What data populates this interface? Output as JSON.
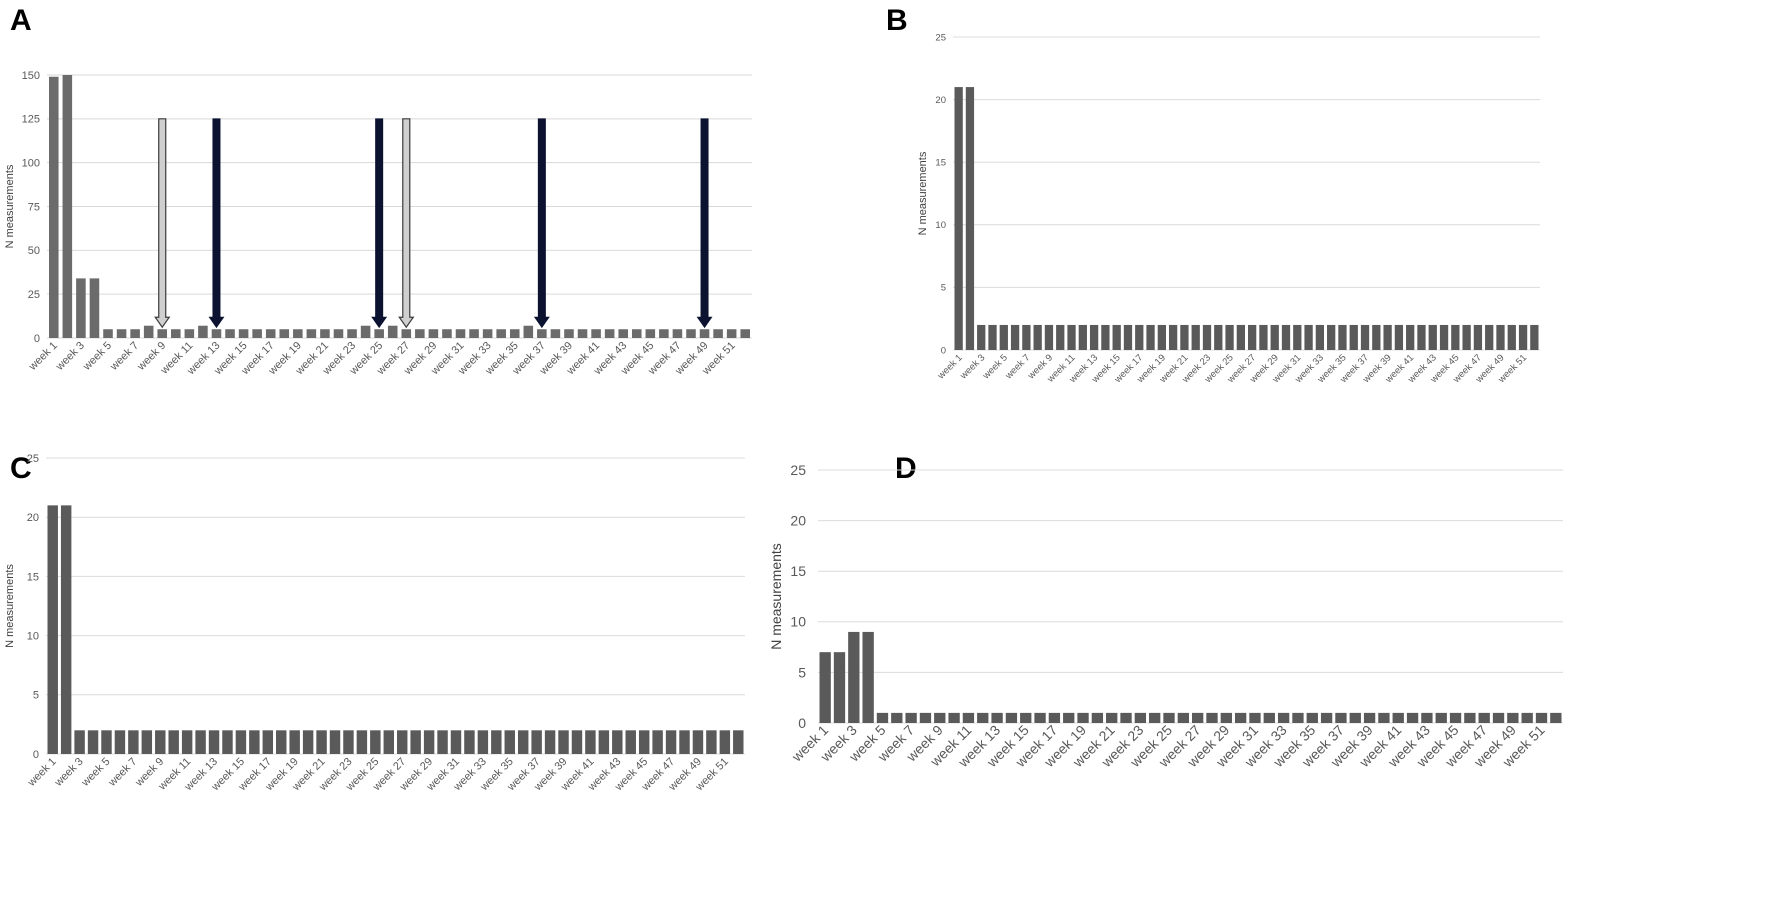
{
  "chart_data": [
    {
      "panel": "A",
      "type": "bar",
      "ylabel": "N measurements",
      "ylim": [
        0,
        150
      ],
      "yticks": [
        0,
        25,
        50,
        75,
        100,
        125,
        150
      ],
      "grid": true,
      "bar_color": "#6b6b6b",
      "categories": [
        "week 1",
        "week 2",
        "week 3",
        "week 4",
        "week 5",
        "week 6",
        "week 7",
        "week 8",
        "week 9",
        "week 10",
        "week 11",
        "week 12",
        "week 13",
        "week 14",
        "week 15",
        "week 16",
        "week 17",
        "week 18",
        "week 19",
        "week 20",
        "week 21",
        "week 22",
        "week 23",
        "week 24",
        "week 25",
        "week 26",
        "week 27",
        "week 28",
        "week 29",
        "week 30",
        "week 31",
        "week 32",
        "week 33",
        "week 34",
        "week 35",
        "week 36",
        "week 37",
        "week 38",
        "week 39",
        "week 40",
        "week 41",
        "week 42",
        "week 43",
        "week 44",
        "week 45",
        "week 46",
        "week 47",
        "week 48",
        "week 49",
        "week 50",
        "week 51",
        "week 52"
      ],
      "tick_labels": [
        "week 1",
        "week 3",
        "week 5",
        "week 7",
        "week 9",
        "week 11",
        "week 13",
        "week 15",
        "week 17",
        "week 19",
        "week 21",
        "week 23",
        "week 25",
        "week 27",
        "week 29",
        "week 31",
        "week 33",
        "week 35",
        "week 37",
        "week 39",
        "week 41",
        "week 43",
        "week 45",
        "week 47",
        "week 49",
        "week 51"
      ],
      "values": [
        149,
        150,
        34,
        34,
        5,
        5,
        5,
        7,
        5,
        5,
        5,
        7,
        5,
        5,
        5,
        5,
        5,
        5,
        5,
        5,
        5,
        5,
        5,
        7,
        5,
        7,
        5,
        5,
        5,
        5,
        5,
        5,
        5,
        5,
        5,
        7,
        5,
        5,
        5,
        5,
        5,
        5,
        5,
        5,
        5,
        5,
        5,
        5,
        5,
        5,
        5,
        5
      ],
      "arrows": [
        {
          "week_index": 8,
          "style": "open",
          "color": "#cfcfcf"
        },
        {
          "week_index": 12,
          "style": "solid",
          "color": "#0b1330"
        },
        {
          "week_index": 24,
          "style": "solid",
          "color": "#0b1330"
        },
        {
          "week_index": 26,
          "style": "open",
          "color": "#cfcfcf"
        },
        {
          "week_index": 36,
          "style": "solid",
          "color": "#0b1330"
        },
        {
          "week_index": 48,
          "style": "solid",
          "color": "#0b1330"
        }
      ]
    },
    {
      "panel": "B",
      "type": "bar",
      "ylabel": "N measurements",
      "ylim": [
        0,
        25
      ],
      "yticks": [
        0,
        5,
        10,
        15,
        20,
        25
      ],
      "grid": true,
      "bar_color": "#5a5a5a",
      "categories": [
        "week 1",
        "week 2",
        "week 3",
        "week 4",
        "week 5",
        "week 6",
        "week 7",
        "week 8",
        "week 9",
        "week 10",
        "week 11",
        "week 12",
        "week 13",
        "week 14",
        "week 15",
        "week 16",
        "week 17",
        "week 18",
        "week 19",
        "week 20",
        "week 21",
        "week 22",
        "week 23",
        "week 24",
        "week 25",
        "week 26",
        "week 27",
        "week 28",
        "week 29",
        "week 30",
        "week 31",
        "week 32",
        "week 33",
        "week 34",
        "week 35",
        "week 36",
        "week 37",
        "week 38",
        "week 39",
        "week 40",
        "week 41",
        "week 42",
        "week 43",
        "week 44",
        "week 45",
        "week 46",
        "week 47",
        "week 48",
        "week 49",
        "week 50",
        "week 51",
        "week 52"
      ],
      "tick_labels": [
        "week 1",
        "week 3",
        "week 5",
        "week 7",
        "week 9",
        "week 11",
        "week 13",
        "week 15",
        "week 17",
        "week 19",
        "week 21",
        "week 23",
        "week 25",
        "week 27",
        "week 29",
        "week 31",
        "week 33",
        "week 35",
        "week 37",
        "week 39",
        "week 41",
        "week 43",
        "week 45",
        "week 47",
        "week 49",
        "week 51"
      ],
      "values": [
        21,
        21,
        2,
        2,
        2,
        2,
        2,
        2,
        2,
        2,
        2,
        2,
        2,
        2,
        2,
        2,
        2,
        2,
        2,
        2,
        2,
        2,
        2,
        2,
        2,
        2,
        2,
        2,
        2,
        2,
        2,
        2,
        2,
        2,
        2,
        2,
        2,
        2,
        2,
        2,
        2,
        2,
        2,
        2,
        2,
        2,
        2,
        2,
        2,
        2,
        2,
        2
      ]
    },
    {
      "panel": "C",
      "type": "bar",
      "ylabel": "N measurements",
      "ylim": [
        0,
        25
      ],
      "yticks": [
        0,
        5,
        10,
        15,
        20,
        25
      ],
      "grid": true,
      "bar_color": "#5a5a5a",
      "categories": [
        "week 1",
        "week 2",
        "week 3",
        "week 4",
        "week 5",
        "week 6",
        "week 7",
        "week 8",
        "week 9",
        "week 10",
        "week 11",
        "week 12",
        "week 13",
        "week 14",
        "week 15",
        "week 16",
        "week 17",
        "week 18",
        "week 19",
        "week 20",
        "week 21",
        "week 22",
        "week 23",
        "week 24",
        "week 25",
        "week 26",
        "week 27",
        "week 28",
        "week 29",
        "week 30",
        "week 31",
        "week 32",
        "week 33",
        "week 34",
        "week 35",
        "week 36",
        "week 37",
        "week 38",
        "week 39",
        "week 40",
        "week 41",
        "week 42",
        "week 43",
        "week 44",
        "week 45",
        "week 46",
        "week 47",
        "week 48",
        "week 49",
        "week 50",
        "week 51",
        "week 52"
      ],
      "tick_labels": [
        "week 1",
        "week 3",
        "week 5",
        "week 7",
        "week 9",
        "week 11",
        "week 13",
        "week 15",
        "week 17",
        "week 19",
        "week 21",
        "week 23",
        "week 25",
        "week 27",
        "week 29",
        "week 31",
        "week 33",
        "week 35",
        "week 37",
        "week 39",
        "week 41",
        "week 43",
        "week 45",
        "week 47",
        "week 49",
        "week 51"
      ],
      "values": [
        21,
        21,
        2,
        2,
        2,
        2,
        2,
        2,
        2,
        2,
        2,
        2,
        2,
        2,
        2,
        2,
        2,
        2,
        2,
        2,
        2,
        2,
        2,
        2,
        2,
        2,
        2,
        2,
        2,
        2,
        2,
        2,
        2,
        2,
        2,
        2,
        2,
        2,
        2,
        2,
        2,
        2,
        2,
        2,
        2,
        2,
        2,
        2,
        2,
        2,
        2,
        2
      ]
    },
    {
      "panel": "D",
      "type": "bar",
      "ylabel": "N measurements",
      "ylim": [
        0,
        25
      ],
      "yticks": [
        0,
        5,
        10,
        15,
        20,
        25
      ],
      "grid": true,
      "bar_color": "#5a5a5a",
      "categories": [
        "week 1",
        "week 2",
        "week 3",
        "week 4",
        "week 5",
        "week 6",
        "week 7",
        "week 8",
        "week 9",
        "week 10",
        "week 11",
        "week 12",
        "week 13",
        "week 14",
        "week 15",
        "week 16",
        "week 17",
        "week 18",
        "week 19",
        "week 20",
        "week 21",
        "week 22",
        "week 23",
        "week 24",
        "week 25",
        "week 26",
        "week 27",
        "week 28",
        "week 29",
        "week 30",
        "week 31",
        "week 32",
        "week 33",
        "week 34",
        "week 35",
        "week 36",
        "week 37",
        "week 38",
        "week 39",
        "week 40",
        "week 41",
        "week 42",
        "week 43",
        "week 44",
        "week 45",
        "week 46",
        "week 47",
        "week 48",
        "week 49",
        "week 50",
        "week 51",
        "week 52"
      ],
      "tick_labels": [
        "week 1",
        "week 3",
        "week 5",
        "week 7",
        "week 9",
        "week 11",
        "week 13",
        "week 15",
        "week 17",
        "week 19",
        "week 21",
        "week 23",
        "week 25",
        "week 27",
        "week 29",
        "week 31",
        "week 33",
        "week 35",
        "week 37",
        "week 39",
        "week 41",
        "week 43",
        "week 45",
        "week 47",
        "week 49",
        "week 51"
      ],
      "values": [
        7,
        7,
        9,
        9,
        1,
        1,
        1,
        1,
        1,
        1,
        1,
        1,
        1,
        1,
        1,
        1,
        1,
        1,
        1,
        1,
        1,
        1,
        1,
        1,
        1,
        1,
        1,
        1,
        1,
        1,
        1,
        1,
        1,
        1,
        1,
        1,
        1,
        1,
        1,
        1,
        1,
        1,
        1,
        1,
        1,
        1,
        1,
        1,
        1,
        1,
        1,
        1
      ]
    }
  ]
}
